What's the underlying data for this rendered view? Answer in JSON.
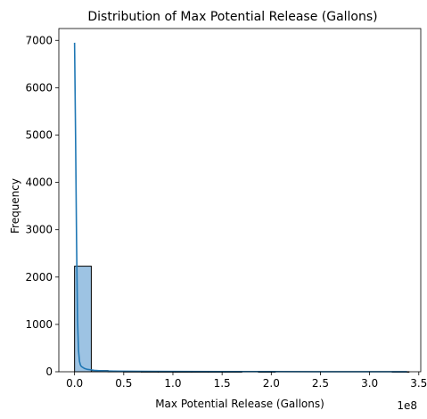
{
  "chart_data": {
    "type": "bar",
    "title": "Distribution of Max Potential Release (Gallons)",
    "xlabel": "Max Potential Release (Gallons)",
    "ylabel": "Frequency",
    "x_offset_label": "1e8",
    "xlim": [
      -0.16,
      3.52
    ],
    "ylim": [
      0,
      7250
    ],
    "x_ticks": [
      {
        "value": 0.0,
        "label": "0.0"
      },
      {
        "value": 0.5,
        "label": "0.5"
      },
      {
        "value": 1.0,
        "label": "1.0"
      },
      {
        "value": 1.5,
        "label": "1.5"
      },
      {
        "value": 2.0,
        "label": "2.0"
      },
      {
        "value": 2.5,
        "label": "2.5"
      },
      {
        "value": 3.0,
        "label": "3.0"
      },
      {
        "value": 3.5,
        "label": "3.5"
      }
    ],
    "y_ticks": [
      {
        "value": 0,
        "label": "0"
      },
      {
        "value": 1000,
        "label": "1000"
      },
      {
        "value": 2000,
        "label": "2000"
      },
      {
        "value": 3000,
        "label": "3000"
      },
      {
        "value": 4000,
        "label": "4000"
      },
      {
        "value": 5000,
        "label": "5000"
      },
      {
        "value": 6000,
        "label": "6000"
      },
      {
        "value": 7000,
        "label": "7000"
      }
    ],
    "bins": [
      {
        "x0": 0.0,
        "x1": 0.17,
        "count": 2230
      },
      {
        "x0": 0.17,
        "x1": 0.34,
        "count": 25
      },
      {
        "x0": 0.34,
        "x1": 0.51,
        "count": 8
      },
      {
        "x0": 0.51,
        "x1": 0.68,
        "count": 4
      },
      {
        "x0": 0.68,
        "x1": 0.85,
        "count": 2
      },
      {
        "x0": 0.85,
        "x1": 1.02,
        "count": 2
      },
      {
        "x0": 1.02,
        "x1": 1.19,
        "count": 1
      },
      {
        "x0": 1.19,
        "x1": 1.36,
        "count": 1
      },
      {
        "x0": 1.36,
        "x1": 1.53,
        "count": 1
      },
      {
        "x0": 1.53,
        "x1": 1.7,
        "count": 1
      },
      {
        "x0": 1.7,
        "x1": 1.87,
        "count": 0
      },
      {
        "x0": 1.87,
        "x1": 2.04,
        "count": 1
      },
      {
        "x0": 2.04,
        "x1": 2.21,
        "count": 0
      },
      {
        "x0": 2.21,
        "x1": 2.38,
        "count": 0
      },
      {
        "x0": 2.38,
        "x1": 2.55,
        "count": 0
      },
      {
        "x0": 2.55,
        "x1": 2.72,
        "count": 0
      },
      {
        "x0": 2.72,
        "x1": 2.89,
        "count": 0
      },
      {
        "x0": 2.89,
        "x1": 3.06,
        "count": 0
      },
      {
        "x0": 3.06,
        "x1": 3.23,
        "count": 0
      },
      {
        "x0": 3.23,
        "x1": 3.4,
        "count": 1
      }
    ],
    "kde": {
      "x": [
        0.0,
        0.01,
        0.02,
        0.03,
        0.04,
        0.05,
        0.06,
        0.07,
        0.1,
        0.13,
        0.17,
        0.2,
        0.25,
        0.3,
        0.4,
        0.5,
        0.7,
        1.0,
        1.5,
        2.0,
        2.5,
        3.0,
        3.38
      ],
      "y": [
        6950,
        5000,
        2800,
        1100,
        450,
        220,
        140,
        110,
        70,
        50,
        40,
        30,
        22,
        18,
        12,
        10,
        8,
        6,
        4,
        3,
        2,
        2,
        1
      ]
    },
    "colors": {
      "bar_fill": "#9dc3e3",
      "bar_edge": "#000000",
      "kde_line": "#1f77b4",
      "axes": "#000000",
      "background": "#ffffff"
    },
    "grid": false,
    "legend": "none"
  }
}
